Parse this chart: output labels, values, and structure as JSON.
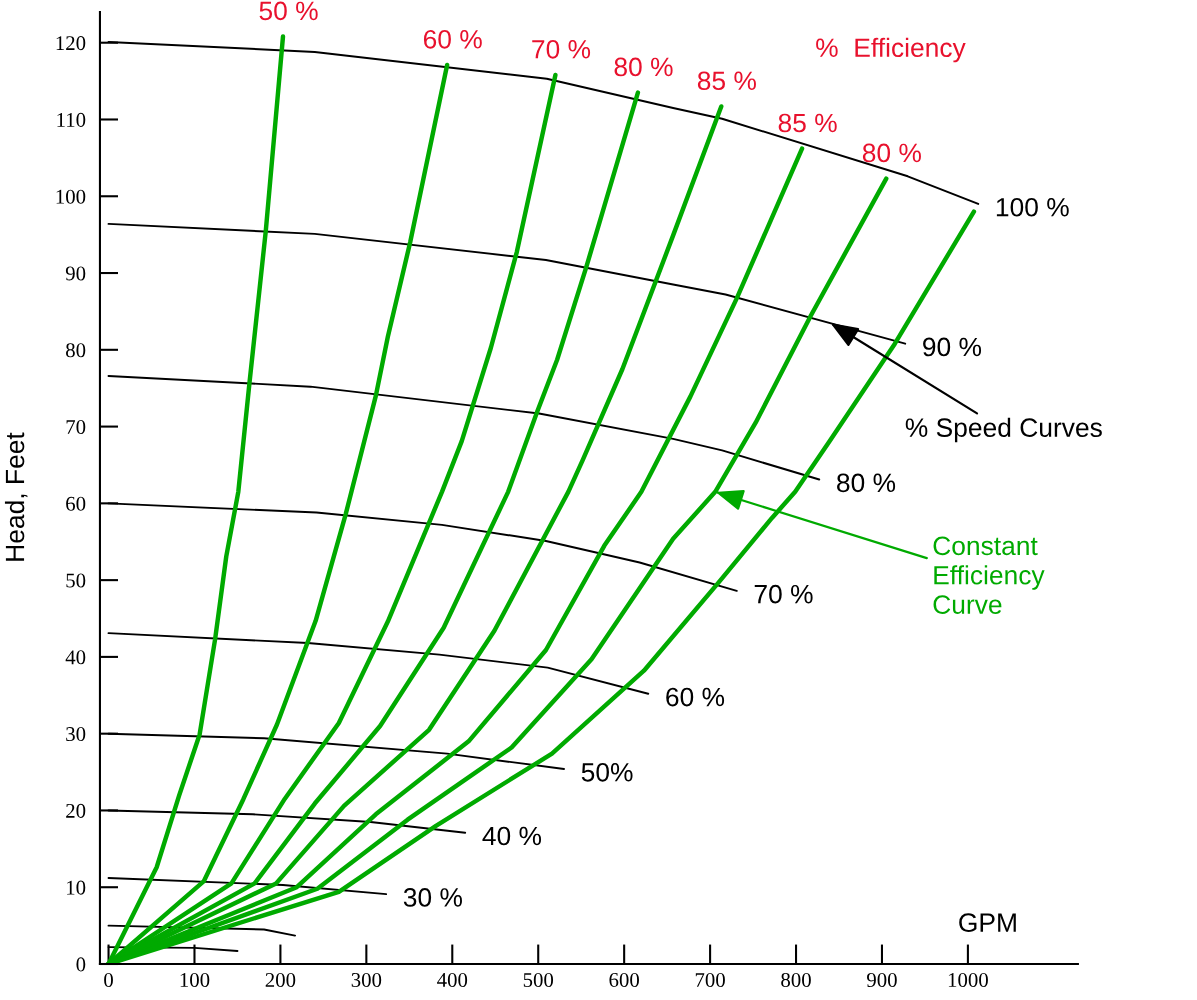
{
  "chart_data": {
    "type": "line",
    "xlabel": "GPM",
    "ylabel": "Head, Feet",
    "xlim": [
      -10,
      1128
    ],
    "ylim": [
      0,
      124
    ],
    "xticks": [
      0,
      100,
      200,
      300,
      400,
      500,
      600,
      700,
      800,
      900,
      1000
    ],
    "yticks": [
      0,
      10,
      20,
      30,
      40,
      50,
      60,
      70,
      80,
      90,
      100,
      110,
      120
    ],
    "grid": false,
    "marker": "none",
    "line_style": "solid",
    "series": [
      {
        "name": "100 %",
        "color": "#000000",
        "x": [
          0,
          240,
          510,
          657,
          714,
          930,
          1012
        ],
        "values": [
          120.1,
          118.8,
          115.3,
          111.5,
          110.1,
          102.6,
          99
        ]
      },
      {
        "name": "90 %",
        "color": "#000000",
        "x": [
          0,
          240,
          509,
          657,
          718,
          927
        ],
        "values": [
          96.4,
          95.1,
          91.7,
          88.5,
          87.2,
          80.8
        ]
      },
      {
        "name": "80 %",
        "color": "#000000",
        "x": [
          0,
          235,
          501,
          657,
          714,
          827
        ],
        "values": [
          76.6,
          75.2,
          71.7,
          68.4,
          66.9,
          63.1
        ]
      },
      {
        "name": "70 %",
        "color": "#000000",
        "x": [
          0,
          242,
          388,
          509,
          618,
          731
        ],
        "values": [
          60,
          58.8,
          57.2,
          55.1,
          52.3,
          48.6
        ]
      },
      {
        "name": "60 %",
        "color": "#000000",
        "x": [
          0,
          232,
          385,
          511,
          628
        ],
        "values": [
          43.1,
          41.8,
          40.3,
          38.6,
          35.2
        ]
      },
      {
        "name": "50%",
        "color": "#000000",
        "x": [
          0,
          181,
          394,
          530
        ],
        "values": [
          30,
          29.4,
          27.4,
          25.4
        ]
      },
      {
        "name": "40 %",
        "color": "#000000",
        "x": [
          0,
          168,
          305,
          415
        ],
        "values": [
          20,
          19.5,
          18.5,
          17.1
        ]
      },
      {
        "name": "30 %",
        "color": "#000000",
        "x": [
          0,
          203,
          323
        ],
        "values": [
          11.2,
          10.3,
          9.1
        ]
      },
      {
        "color": "#000000",
        "x": [
          0,
          181,
          217
        ],
        "values": [
          5,
          4.5,
          3.7
        ]
      },
      {
        "color": "#000000",
        "x": [
          0,
          100,
          150
        ],
        "values": [
          2.2,
          2.1,
          1.7
        ]
      },
      {
        "name": "50 %",
        "color": "#00aa00",
        "x": [
          0,
          56,
          82,
          106,
          124,
          137,
          151,
          164,
          183,
          203
        ],
        "values": [
          0,
          12.6,
          21.9,
          29.9,
          42.3,
          53.1,
          61.5,
          75.7,
          95.5,
          120.8
        ]
      },
      {
        "name": "60 %",
        "color": "#00aa00",
        "x": [
          0,
          111,
          157,
          196,
          241,
          276,
          311,
          325,
          351,
          394
        ],
        "values": [
          0,
          10.8,
          21.5,
          31.2,
          44.7,
          58.6,
          74,
          81.7,
          94,
          117.1
        ]
      },
      {
        "name": "70 %",
        "color": "#00aa00",
        "x": [
          0,
          143,
          205,
          268,
          325,
          388,
          411,
          445,
          475,
          520
        ],
        "values": [
          0,
          10.5,
          21.5,
          31.4,
          44.6,
          61.5,
          68.1,
          80.3,
          92.7,
          115.8
        ]
      },
      {
        "name": "80 %",
        "color": "#00aa00",
        "x": [
          0,
          170,
          240,
          316,
          390,
          465,
          499,
          522,
          556,
          616
        ],
        "values": [
          0,
          10.5,
          20.9,
          31,
          43.8,
          61.5,
          72,
          78.7,
          90.8,
          113.5
        ]
      },
      {
        "name": "85 %",
        "color": "#00aa00",
        "x": [
          0,
          195,
          274,
          373,
          449,
          535,
          552,
          598,
          657,
          713
        ],
        "values": [
          0,
          10.5,
          20.6,
          30.5,
          43.4,
          61.5,
          65.7,
          77.5,
          94.9,
          111.7
        ]
      },
      {
        "name": "85 %",
        "color": "#00aa00",
        "x": [
          0,
          219,
          311,
          419,
          509,
          577,
          620,
          677,
          731,
          807
        ],
        "values": [
          0,
          10,
          19.5,
          29,
          40.9,
          54.5,
          61.5,
          73.9,
          86.7,
          106.2
        ]
      },
      {
        "name": "80 %",
        "color": "#00aa00",
        "x": [
          0,
          243,
          348,
          469,
          562,
          657,
          706,
          753,
          817,
          905
        ],
        "values": [
          0,
          9.8,
          18.8,
          28.2,
          39.7,
          55.4,
          61.5,
          70.5,
          84.4,
          102.3
        ]
      },
      {
        "color": "#00aa00",
        "x": [
          0,
          268,
          381,
          516,
          623,
          710,
          772,
          799,
          839,
          915,
          1007
        ],
        "values": [
          0,
          9.4,
          18,
          27.4,
          38.2,
          49.7,
          58.1,
          61.5,
          68.1,
          80.8,
          98
        ]
      }
    ],
    "annotations": [
      "%  Efficiency",
      {
        "text": "% Speed Curves",
        "x": 840,
        "y": 83.5
      },
      {
        "text": "Constant\nEfficiency\nCurve",
        "x": 706,
        "y": 61.5
      }
    ]
  }
}
